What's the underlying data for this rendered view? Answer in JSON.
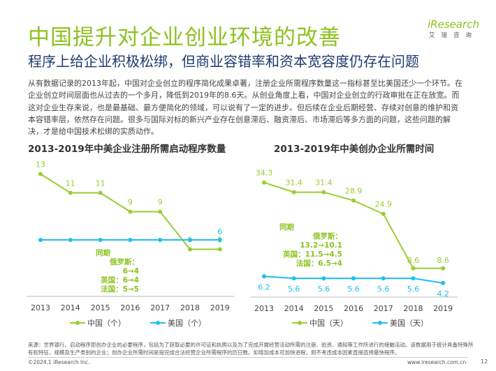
{
  "title": "中国提升对企业创业环境的改善",
  "subtitle": "程序上给企业积极松绑，但商业容错率和资本宽容度仍存在问题",
  "body": "从有数据记录的2013年起，中国对企业创立的程序简化成果卓著，注册企业所需程序数量这一指标甚至比美国还少一个环节。在企业创立时间层面也从过去的一个多月，降低到2019年的8.6天。从创业角度上看，中国对企业创立的行政审批在正在放宽。而这对企业生存来说，也是最基础、最方便简化的领域，可以说有了一定的进步。但后续在企业后期经营、存续对创意的维护和资本容错率层，依然存在问题。很多与国际对标的新兴产业存在创意滞后、融资滞后、市场滞后等多方面的问题，这些问题的解决，才是给中国技术松绑的实质动作。",
  "logo": {
    "brand": "iResearch",
    "sub": "艾瑞咨询"
  },
  "chart_data": [
    {
      "type": "line",
      "title": "2013-2019年中美企业注册所需启动程序数量",
      "categories": [
        "2013",
        "2014",
        "2015",
        "2016",
        "2017",
        "2018",
        "2019"
      ],
      "series": [
        {
          "name": "中国（个）",
          "color": "#9acd32",
          "values": [
            13,
            11,
            11,
            9,
            9,
            5,
            5
          ]
        },
        {
          "name": "美国（个）",
          "color": "#1fbfef",
          "values": [
            6,
            6,
            6,
            6,
            6,
            6,
            6
          ]
        }
      ],
      "labels_shown": {
        "us": [
          6
        ]
      },
      "note": {
        "head": "同期",
        "lines": [
          "俄罗斯：6→4",
          "英国：6→4",
          "法国：5→5"
        ]
      }
    },
    {
      "type": "line",
      "title": "2013-2019年中美创办企业所需时间",
      "categories": [
        "2013",
        "2014",
        "2015",
        "2016",
        "2017",
        "2018",
        "2019"
      ],
      "series": [
        {
          "name": "中国（天）",
          "color": "#9acd32",
          "values": [
            34.3,
            31.4,
            31.4,
            28.9,
            24.9,
            8.6,
            8.6
          ]
        },
        {
          "name": "美国（天）",
          "color": "#1fbfef",
          "values": [
            6.2,
            5.6,
            5.6,
            5.6,
            5.6,
            5.6,
            4.2
          ]
        }
      ],
      "note": {
        "head": "同期",
        "lines": [
          "俄罗斯：13.2→10.1",
          "英国：11.5→4.5",
          "法国：6.5→4"
        ]
      }
    }
  ],
  "source": "来源：世界银行。启动程序即创办企业的必要程序，包括为了获取必要的许可证和执照以及为了完成开展经营活动所需的注册、验资、通知等工作所进行的接触活动。该数据用于统计具备特殊所有权特征、规模及生产类别的企业；创办企业所需时间是指完成合法经营企业所需程序的历日数。如增加成本可加快进程，则不考虑成本因素直接选择最快程序。",
  "footer": {
    "copyright": "©2024.1 iResearch Inc.",
    "site": "www.iresearch.com.cn",
    "page": "12"
  }
}
